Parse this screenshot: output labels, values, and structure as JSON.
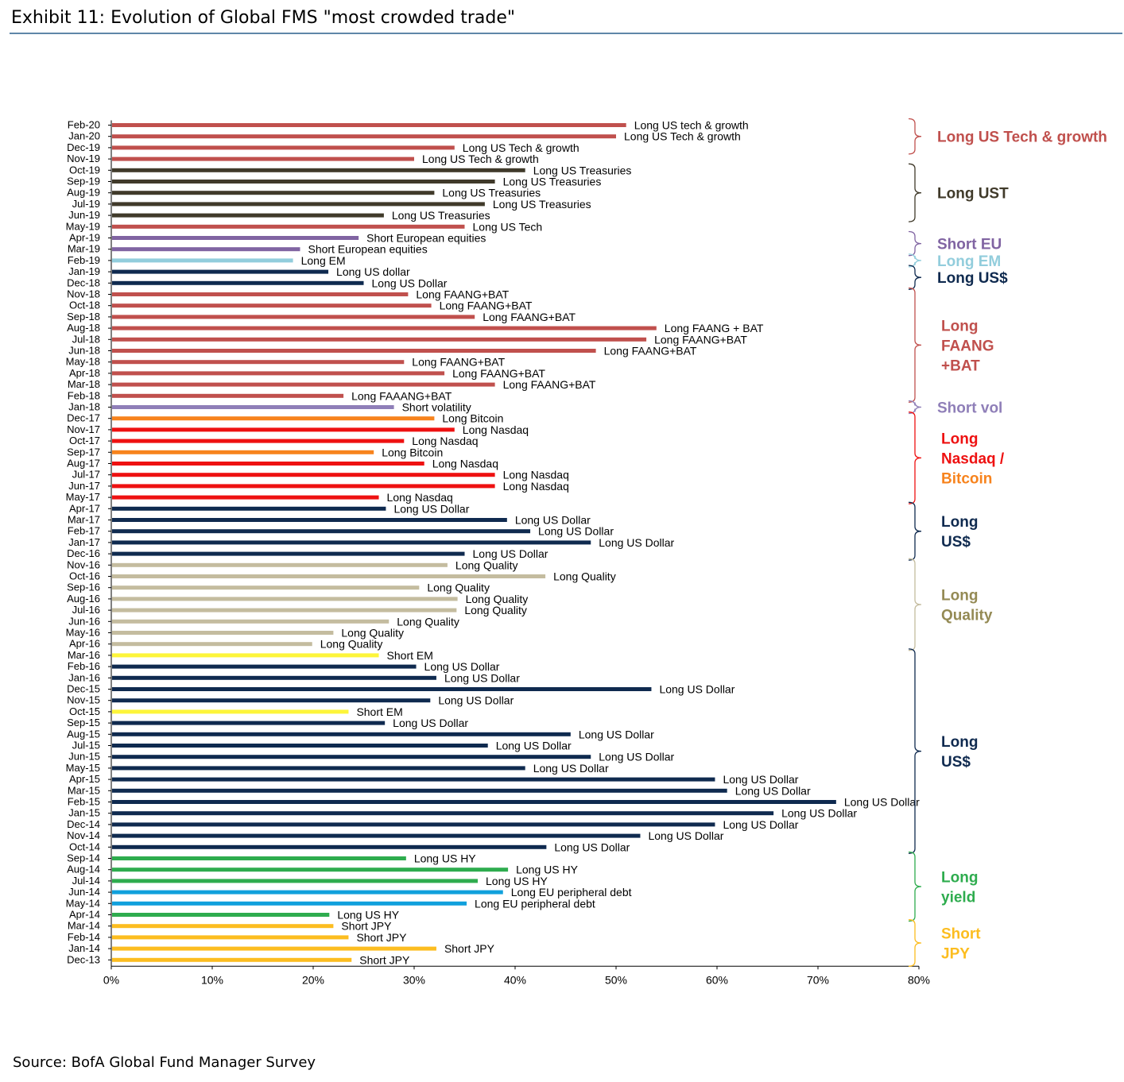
{
  "header": {
    "title": "Exhibit 11: Evolution of Global FMS \"most crowded trade\""
  },
  "footer": {
    "source": "Source: BofA Global Fund Manager Survey"
  },
  "colors": {
    "tech": "#c0504d",
    "ust": "#403a2a",
    "short_eu": "#8064a2",
    "long_em": "#92cddc",
    "usd": "#0f2a4f",
    "short_vol": "#8f7fb8",
    "nasdaq": "#ee1111",
    "bitcoin": "#f7831d",
    "quality": "#c4bc9f",
    "short_em": "#fdf53a",
    "hy": "#2eac4e",
    "eu_debt": "#10a0dc",
    "jpy": "#fcbd20",
    "quality_text": "#948a54"
  },
  "chart_data": {
    "type": "bar",
    "orientation": "horizontal",
    "title": "",
    "xlabel": "",
    "ylabel": "",
    "xlim": [
      0,
      80
    ],
    "x_ticks": [
      "0%",
      "10%",
      "20%",
      "30%",
      "40%",
      "50%",
      "60%",
      "70%",
      "80%"
    ],
    "bars": [
      {
        "month": "Feb-20",
        "value": 51.0,
        "label": "Long US tech & growth",
        "color": "tech"
      },
      {
        "month": "Jan-20",
        "value": 50.0,
        "label": "Long US Tech & growth",
        "color": "tech"
      },
      {
        "month": "Dec-19",
        "value": 34.0,
        "label": "Long US Tech & growth",
        "color": "tech"
      },
      {
        "month": "Nov-19",
        "value": 30.0,
        "label": "Long US Tech & growth",
        "color": "tech"
      },
      {
        "month": "Oct-19",
        "value": 41.0,
        "label": "Long US Treasuries",
        "color": "ust"
      },
      {
        "month": "Sep-19",
        "value": 38.0,
        "label": "Long US Treasuries",
        "color": "ust"
      },
      {
        "month": "Aug-19",
        "value": 32.0,
        "label": "Long US Treasuries",
        "color": "ust"
      },
      {
        "month": "Jul-19",
        "value": 37.0,
        "label": "Long US Treasuries",
        "color": "ust"
      },
      {
        "month": "Jun-19",
        "value": 27.0,
        "label": "Long US Treasuries",
        "color": "ust"
      },
      {
        "month": "May-19",
        "value": 35.0,
        "label": "Long US Tech",
        "color": "tech"
      },
      {
        "month": "Apr-19",
        "value": 24.5,
        "label": "Short European equities",
        "color": "short_eu"
      },
      {
        "month": "Mar-19",
        "value": 18.7,
        "label": "Short European equities",
        "color": "short_eu"
      },
      {
        "month": "Feb-19",
        "value": 18.0,
        "label": "Long EM",
        "color": "long_em"
      },
      {
        "month": "Jan-19",
        "value": 21.5,
        "label": "Long US dollar",
        "color": "usd"
      },
      {
        "month": "Dec-18",
        "value": 25.0,
        "label": "Long US Dollar",
        "color": "usd"
      },
      {
        "month": "Nov-18",
        "value": 29.4,
        "label": "Long FAANG+BAT",
        "color": "tech"
      },
      {
        "month": "Oct-18",
        "value": 31.7,
        "label": "Long FAANG+BAT",
        "color": "tech"
      },
      {
        "month": "Sep-18",
        "value": 36.0,
        "label": "Long FAANG+BAT",
        "color": "tech"
      },
      {
        "month": "Aug-18",
        "value": 54.0,
        "label": "Long FAANG + BAT",
        "color": "tech"
      },
      {
        "month": "Jul-18",
        "value": 53.0,
        "label": "Long FAANG+BAT",
        "color": "tech"
      },
      {
        "month": "Jun-18",
        "value": 48.0,
        "label": "Long FAANG+BAT",
        "color": "tech"
      },
      {
        "month": "May-18",
        "value": 29.0,
        "label": "Long FAANG+BAT",
        "color": "tech"
      },
      {
        "month": "Apr-18",
        "value": 33.0,
        "label": "Long FAANG+BAT",
        "color": "tech"
      },
      {
        "month": "Mar-18",
        "value": 38.0,
        "label": "Long FAANG+BAT",
        "color": "tech"
      },
      {
        "month": "Feb-18",
        "value": 23.0,
        "label": "Long FAAANG+BAT",
        "color": "tech"
      },
      {
        "month": "Jan-18",
        "value": 28.0,
        "label": "Short volatility",
        "color": "short_vol"
      },
      {
        "month": "Dec-17",
        "value": 32.0,
        "label": "Long Bitcoin",
        "color": "bitcoin"
      },
      {
        "month": "Nov-17",
        "value": 34.0,
        "label": "Long Nasdaq",
        "color": "nasdaq"
      },
      {
        "month": "Oct-17",
        "value": 29.0,
        "label": "Long Nasdaq",
        "color": "nasdaq"
      },
      {
        "month": "Sep-17",
        "value": 26.0,
        "label": "Long Bitcoin",
        "color": "bitcoin"
      },
      {
        "month": "Aug-17",
        "value": 31.0,
        "label": "Long Nasdaq",
        "color": "nasdaq"
      },
      {
        "month": "Jul-17",
        "value": 38.0,
        "label": "Long Nasdaq",
        "color": "nasdaq"
      },
      {
        "month": "Jun-17",
        "value": 38.0,
        "label": "Long Nasdaq",
        "color": "nasdaq"
      },
      {
        "month": "May-17",
        "value": 26.5,
        "label": "Long Nasdaq",
        "color": "nasdaq"
      },
      {
        "month": "Apr-17",
        "value": 27.2,
        "label": "Long US Dollar",
        "color": "usd"
      },
      {
        "month": "Mar-17",
        "value": 39.2,
        "label": "Long US Dollar",
        "color": "usd"
      },
      {
        "month": "Feb-17",
        "value": 41.5,
        "label": "Long US Dollar",
        "color": "usd"
      },
      {
        "month": "Jan-17",
        "value": 47.5,
        "label": "Long US Dollar",
        "color": "usd"
      },
      {
        "month": "Dec-16",
        "value": 35.0,
        "label": "Long US Dollar",
        "color": "usd"
      },
      {
        "month": "Nov-16",
        "value": 33.3,
        "label": "Long Quality",
        "color": "quality"
      },
      {
        "month": "Oct-16",
        "value": 43.0,
        "label": "Long Quality",
        "color": "quality"
      },
      {
        "month": "Sep-16",
        "value": 30.5,
        "label": "Long Quality",
        "color": "quality"
      },
      {
        "month": "Aug-16",
        "value": 34.3,
        "label": "Long Quality",
        "color": "quality"
      },
      {
        "month": "Jul-16",
        "value": 34.2,
        "label": "Long Quality",
        "color": "quality"
      },
      {
        "month": "Jun-16",
        "value": 27.5,
        "label": "Long Quality",
        "color": "quality"
      },
      {
        "month": "May-16",
        "value": 22.0,
        "label": "Long Quality",
        "color": "quality"
      },
      {
        "month": "Apr-16",
        "value": 19.9,
        "label": "Long Quality",
        "color": "quality"
      },
      {
        "month": "Mar-16",
        "value": 26.5,
        "label": "Short EM",
        "color": "short_em"
      },
      {
        "month": "Feb-16",
        "value": 30.2,
        "label": "Long US Dollar",
        "color": "usd"
      },
      {
        "month": "Jan-16",
        "value": 32.2,
        "label": "Long US Dollar",
        "color": "usd"
      },
      {
        "month": "Dec-15",
        "value": 53.5,
        "label": "Long US Dollar",
        "color": "usd"
      },
      {
        "month": "Nov-15",
        "value": 31.6,
        "label": "Long US Dollar",
        "color": "usd"
      },
      {
        "month": "Oct-15",
        "value": 23.5,
        "label": "Short EM",
        "color": "short_em"
      },
      {
        "month": "Sep-15",
        "value": 27.1,
        "label": "Long US Dollar",
        "color": "usd"
      },
      {
        "month": "Aug-15",
        "value": 45.5,
        "label": "Long US Dollar",
        "color": "usd"
      },
      {
        "month": "Jul-15",
        "value": 37.3,
        "label": "Long US Dollar",
        "color": "usd"
      },
      {
        "month": "Jun-15",
        "value": 47.5,
        "label": "Long US Dollar",
        "color": "usd"
      },
      {
        "month": "May-15",
        "value": 41.0,
        "label": "Long US Dollar",
        "color": "usd"
      },
      {
        "month": "Apr-15",
        "value": 59.8,
        "label": "Long US Dollar",
        "color": "usd"
      },
      {
        "month": "Mar-15",
        "value": 61.0,
        "label": "Long US Dollar",
        "color": "usd"
      },
      {
        "month": "Feb-15",
        "value": 71.8,
        "label": "Long US Dollar",
        "color": "usd"
      },
      {
        "month": "Jan-15",
        "value": 65.6,
        "label": "Long US Dollar",
        "color": "usd"
      },
      {
        "month": "Dec-14",
        "value": 59.8,
        "label": "Long US Dollar",
        "color": "usd"
      },
      {
        "month": "Nov-14",
        "value": 52.4,
        "label": "Long US Dollar",
        "color": "usd"
      },
      {
        "month": "Oct-14",
        "value": 43.1,
        "label": "Long US Dollar",
        "color": "usd"
      },
      {
        "month": "Sep-14",
        "value": 29.2,
        "label": "Long US HY",
        "color": "hy"
      },
      {
        "month": "Aug-14",
        "value": 39.3,
        "label": "Long US HY",
        "color": "hy"
      },
      {
        "month": "Jul-14",
        "value": 36.3,
        "label": "Long US HY",
        "color": "hy"
      },
      {
        "month": "Jun-14",
        "value": 38.8,
        "label": "Long EU peripheral debt",
        "color": "eu_debt"
      },
      {
        "month": "May-14",
        "value": 35.2,
        "label": "Long EU peripheral debt",
        "color": "eu_debt"
      },
      {
        "month": "Apr-14",
        "value": 21.6,
        "label": "Long US HY",
        "color": "hy"
      },
      {
        "month": "Mar-14",
        "value": 22.0,
        "label": "Short JPY",
        "color": "jpy"
      },
      {
        "month": "Feb-14",
        "value": 23.5,
        "label": "Short JPY",
        "color": "jpy"
      },
      {
        "month": "Jan-14",
        "value": 32.2,
        "label": "Short JPY",
        "color": "jpy"
      },
      {
        "month": "Dec-13",
        "value": 23.8,
        "label": "Short JPY",
        "color": "jpy"
      }
    ],
    "groups": [
      {
        "lines": [
          "Long US Tech & growth"
        ],
        "from": "Dec-19",
        "to": "Feb-20",
        "color": "tech"
      },
      {
        "lines": [
          "Long UST"
        ],
        "from": "Jun-19",
        "to": "Oct-19",
        "color": "ust"
      },
      {
        "lines": [
          "Short EU"
        ],
        "from": "Mar-19",
        "to": "Apr-19",
        "color": "short_eu"
      },
      {
        "lines": [
          "Long EM"
        ],
        "from": "Feb-19",
        "to": "Feb-19",
        "color": "long_em"
      },
      {
        "lines": [
          "Long US$"
        ],
        "from": "Dec-18",
        "to": "Jan-19",
        "color": "usd"
      },
      {
        "lines": [
          "Long",
          "FAANG",
          "+BAT"
        ],
        "from": "Feb-18",
        "to": "Nov-18",
        "color": "tech"
      },
      {
        "lines": [
          "Short vol"
        ],
        "from": "Jan-18",
        "to": "Jan-18",
        "color": "short_vol"
      },
      {
        "lines": [
          "Long",
          "Nasdaq /",
          "Bitcoin"
        ],
        "from": "May-17",
        "to": "Dec-17",
        "color": "nasdaq",
        "line_colors": [
          "nasdaq",
          "nasdaq",
          "bitcoin"
        ]
      },
      {
        "lines": [
          "Long",
          "US$"
        ],
        "from": "Dec-16",
        "to": "Apr-17",
        "color": "usd"
      },
      {
        "lines": [
          "Long",
          "Quality"
        ],
        "from": "Apr-16",
        "to": "Nov-16",
        "color": "quality",
        "text_color": "quality_text"
      },
      {
        "lines": [
          "Long",
          "US$"
        ],
        "from": "Oct-14",
        "to": "Mar-16",
        "color": "usd"
      },
      {
        "lines": [
          "Long",
          "yield"
        ],
        "from": "Apr-14",
        "to": "Sep-14",
        "color": "hy"
      },
      {
        "lines": [
          "Short",
          "JPY"
        ],
        "from": "Dec-13",
        "to": "Mar-14",
        "color": "jpy"
      }
    ]
  }
}
